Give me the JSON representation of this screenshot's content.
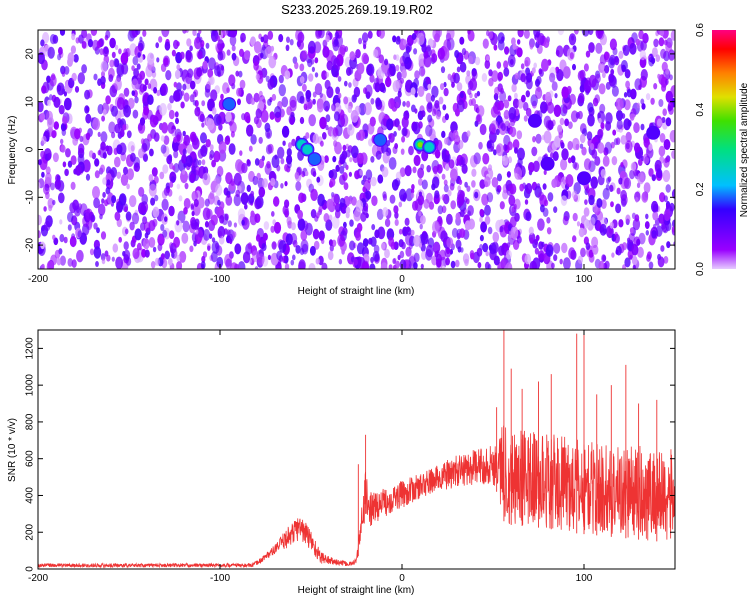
{
  "chart_data": [
    {
      "type": "heatmap",
      "title": "S233.2025.269.19.19.R02",
      "xlabel": "Height of straight line (km)",
      "ylabel": "Frequency (Hz)",
      "xlim": [
        -200,
        150
      ],
      "ylim": [
        -25,
        25
      ],
      "xticks": [
        -200,
        -100,
        0,
        100
      ],
      "yticks": [
        -20,
        -10,
        0,
        10,
        20
      ],
      "colorbar": {
        "label": "Normalized spectral amplitude",
        "range": [
          0.0,
          0.6
        ],
        "ticks": [
          "0.0",
          "0.2",
          "0.4",
          "0.6"
        ],
        "colors": [
          "#e6ccff",
          "#9900ff",
          "#3300ff",
          "#00c0ff",
          "#00e080",
          "#40e000",
          "#e0e000",
          "#ff8000",
          "#ff0000",
          "#ff0080"
        ]
      },
      "background_noise": {
        "min_amplitude": 0.0,
        "max_amplitude": 0.12
      },
      "hotspots": [
        {
          "x": -95,
          "y": 9.5,
          "amplitude": 0.22
        },
        {
          "x": -55,
          "y": 1.0,
          "amplitude": 0.25
        },
        {
          "x": -52,
          "y": 0.0,
          "amplitude": 0.3
        },
        {
          "x": -48,
          "y": -2.0,
          "amplitude": 0.22
        },
        {
          "x": -12,
          "y": 2.0,
          "amplitude": 0.24
        },
        {
          "x": 10,
          "y": 1.0,
          "amplitude": 0.45
        },
        {
          "x": 15,
          "y": 0.5,
          "amplitude": 0.3
        },
        {
          "x": 73,
          "y": 6.0,
          "amplitude": 0.15
        },
        {
          "x": 80,
          "y": -3.0,
          "amplitude": 0.16
        },
        {
          "x": 100,
          "y": -6.0,
          "amplitude": 0.15
        },
        {
          "x": 138,
          "y": 3.5,
          "amplitude": 0.15
        }
      ]
    },
    {
      "type": "line",
      "xlabel": "Height of straight line (km)",
      "ylabel": "SNR (10 * v/v)",
      "xlim": [
        -200,
        150
      ],
      "ylim": [
        0,
        1300
      ],
      "xticks": [
        -200,
        -100,
        0,
        100
      ],
      "yticks": [
        0,
        200,
        400,
        600,
        800,
        1000,
        1200
      ],
      "series": [
        {
          "name": "SNR",
          "color": "#ee3333",
          "envelope": {
            "x": [
              -200,
              -150,
              -100,
              -82,
              -78,
              -70,
              -62,
              -56,
              -50,
              -45,
              -38,
              -30,
              -28,
              -25,
              -22,
              -20,
              -18,
              -15,
              -10,
              -5,
              0,
              10,
              20,
              30,
              40,
              50,
              52,
              56,
              60,
              70,
              80,
              90,
              100,
              110,
              120,
              130,
              140,
              150
            ],
            "lower": [
              10,
              10,
              10,
              10,
              30,
              80,
              120,
              160,
              90,
              30,
              20,
              15,
              15,
              30,
              150,
              300,
              220,
              250,
              280,
              310,
              330,
              380,
              420,
              440,
              460,
              460,
              420,
              260,
              240,
              230,
              220,
              200,
              190,
              180,
              170,
              160,
              150,
              140
            ],
            "upper": [
              30,
              30,
              30,
              30,
              60,
              130,
              240,
              300,
              220,
              100,
              60,
              40,
              40,
              60,
              360,
              540,
              420,
              420,
              440,
              460,
              480,
              520,
              570,
              620,
              650,
              680,
              720,
              820,
              780,
              760,
              740,
              720,
              700,
              690,
              680,
              670,
              660,
              650
            ]
          },
          "spikes": [
            {
              "x": -20,
              "y": 730
            },
            {
              "x": -24,
              "y": 570
            },
            {
              "x": 52,
              "y": 880
            },
            {
              "x": 56,
              "y": 1300
            },
            {
              "x": 60,
              "y": 1090
            },
            {
              "x": 66,
              "y": 980
            },
            {
              "x": 75,
              "y": 1020
            },
            {
              "x": 82,
              "y": 1060
            },
            {
              "x": 96,
              "y": 1280
            },
            {
              "x": 100,
              "y": 1280
            },
            {
              "x": 107,
              "y": 950
            },
            {
              "x": 115,
              "y": 1000
            },
            {
              "x": 123,
              "y": 1110
            },
            {
              "x": 130,
              "y": 900
            },
            {
              "x": 140,
              "y": 920
            }
          ]
        }
      ]
    }
  ]
}
